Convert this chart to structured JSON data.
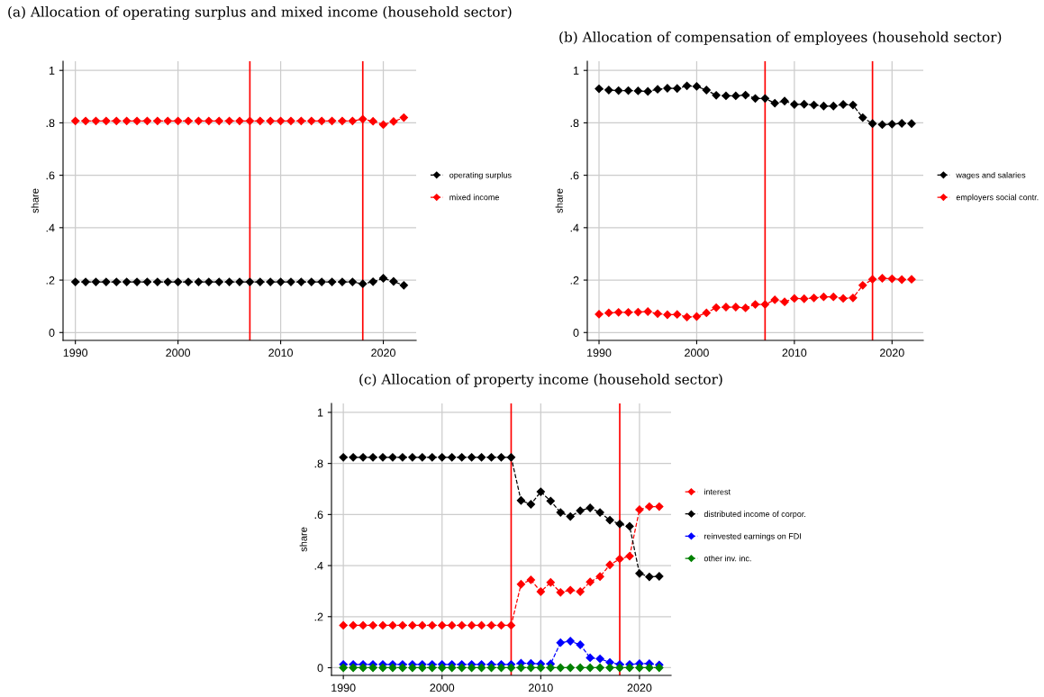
{
  "chart_data": [
    {
      "type": "line",
      "title": "(a) Allocation of operating surplus and mixed income (household sector)",
      "ylabel": "share",
      "x": [
        1990,
        1991,
        1992,
        1993,
        1994,
        1995,
        1996,
        1997,
        1998,
        1999,
        2000,
        2001,
        2002,
        2003,
        2004,
        2005,
        2006,
        2007,
        2008,
        2009,
        2010,
        2011,
        2012,
        2013,
        2014,
        2015,
        2016,
        2017,
        2018,
        2019,
        2020,
        2021,
        2022
      ],
      "series": [
        {
          "name": "operating surplus",
          "color": "#000000",
          "values": [
            0.193,
            0.193,
            0.193,
            0.193,
            0.193,
            0.193,
            0.193,
            0.193,
            0.193,
            0.193,
            0.193,
            0.193,
            0.193,
            0.193,
            0.193,
            0.193,
            0.193,
            0.193,
            0.193,
            0.193,
            0.193,
            0.193,
            0.193,
            0.193,
            0.193,
            0.193,
            0.193,
            0.193,
            0.186,
            0.194,
            0.207,
            0.195,
            0.18
          ]
        },
        {
          "name": "mixed income",
          "color": "#ff0000",
          "values": [
            0.807,
            0.807,
            0.807,
            0.807,
            0.807,
            0.807,
            0.807,
            0.807,
            0.807,
            0.807,
            0.807,
            0.807,
            0.807,
            0.807,
            0.807,
            0.807,
            0.807,
            0.807,
            0.807,
            0.807,
            0.807,
            0.807,
            0.807,
            0.807,
            0.807,
            0.807,
            0.807,
            0.807,
            0.814,
            0.806,
            0.793,
            0.805,
            0.82
          ]
        }
      ],
      "xlim": [
        1988.8,
        2023.2
      ],
      "ylim": [
        -0.03,
        1.035
      ],
      "xticks": [
        1990,
        2000,
        2010,
        2020
      ],
      "yticks": [
        {
          "value": 0,
          "label": "0"
        },
        {
          "value": 0.2,
          "label": ".2"
        },
        {
          "value": 0.4,
          "label": ".4"
        },
        {
          "value": 0.6,
          "label": ".6"
        },
        {
          "value": 0.8,
          "label": ".8"
        },
        {
          "value": 1,
          "label": "1"
        }
      ],
      "ref_lines": [
        {
          "axis": "x",
          "value": 2007,
          "color": "#ff0000"
        },
        {
          "axis": "x",
          "value": 2018,
          "color": "#ff0000"
        }
      ],
      "grid": true,
      "legend": "right",
      "marker": "diamond",
      "line_style": "dashed"
    },
    {
      "type": "line",
      "title": "(b) Allocation of compensation of employees (household sector)",
      "ylabel": "share",
      "x": [
        1990,
        1991,
        1992,
        1993,
        1994,
        1995,
        1996,
        1997,
        1998,
        1999,
        2000,
        2001,
        2002,
        2003,
        2004,
        2005,
        2006,
        2007,
        2008,
        2009,
        2010,
        2011,
        2012,
        2013,
        2014,
        2015,
        2016,
        2017,
        2018,
        2019,
        2020,
        2021,
        2022
      ],
      "series": [
        {
          "name": "wages and salaries",
          "color": "#000000",
          "values": [
            0.93,
            0.925,
            0.923,
            0.923,
            0.922,
            0.92,
            0.928,
            0.932,
            0.931,
            0.941,
            0.939,
            0.925,
            0.905,
            0.903,
            0.903,
            0.906,
            0.893,
            0.893,
            0.875,
            0.883,
            0.87,
            0.871,
            0.868,
            0.864,
            0.864,
            0.87,
            0.868,
            0.82,
            0.797,
            0.793,
            0.795,
            0.798,
            0.797
          ]
        },
        {
          "name": "employers social contr.",
          "color": "#ff0000",
          "values": [
            0.07,
            0.075,
            0.077,
            0.077,
            0.078,
            0.08,
            0.072,
            0.068,
            0.069,
            0.059,
            0.061,
            0.075,
            0.095,
            0.097,
            0.097,
            0.094,
            0.107,
            0.107,
            0.125,
            0.117,
            0.13,
            0.129,
            0.132,
            0.136,
            0.136,
            0.13,
            0.132,
            0.18,
            0.203,
            0.207,
            0.205,
            0.202,
            0.203
          ]
        }
      ],
      "xlim": [
        1988.8,
        2023.2
      ],
      "ylim": [
        -0.03,
        1.035
      ],
      "xticks": [
        1990,
        2000,
        2010,
        2020
      ],
      "yticks": [
        {
          "value": 0,
          "label": "0"
        },
        {
          "value": 0.2,
          "label": ".2"
        },
        {
          "value": 0.4,
          "label": ".4"
        },
        {
          "value": 0.6,
          "label": ".6"
        },
        {
          "value": 0.8,
          "label": ".8"
        },
        {
          "value": 1,
          "label": "1"
        }
      ],
      "ref_lines": [
        {
          "axis": "x",
          "value": 2007,
          "color": "#ff0000"
        },
        {
          "axis": "x",
          "value": 2018,
          "color": "#ff0000"
        }
      ],
      "grid": true,
      "legend": "right",
      "marker": "diamond",
      "line_style": "dashed"
    },
    {
      "type": "line",
      "title": "(c) Allocation of property income (household sector)",
      "ylabel": "share",
      "x": [
        1990,
        1991,
        1992,
        1993,
        1994,
        1995,
        1996,
        1997,
        1998,
        1999,
        2000,
        2001,
        2002,
        2003,
        2004,
        2005,
        2006,
        2007,
        2008,
        2009,
        2010,
        2011,
        2012,
        2013,
        2014,
        2015,
        2016,
        2017,
        2018,
        2019,
        2020,
        2021,
        2022
      ],
      "series": [
        {
          "name": "interest",
          "color": "#ff0000",
          "values": [
            0.166,
            0.166,
            0.166,
            0.166,
            0.166,
            0.166,
            0.166,
            0.166,
            0.166,
            0.166,
            0.166,
            0.166,
            0.166,
            0.166,
            0.166,
            0.166,
            0.166,
            0.166,
            0.327,
            0.344,
            0.298,
            0.334,
            0.295,
            0.304,
            0.298,
            0.336,
            0.357,
            0.403,
            0.426,
            0.437,
            0.619,
            0.631,
            0.631
          ]
        },
        {
          "name": "distributed income of corpor.",
          "color": "#000000",
          "values": [
            0.824,
            0.824,
            0.824,
            0.824,
            0.824,
            0.824,
            0.824,
            0.824,
            0.824,
            0.824,
            0.824,
            0.824,
            0.824,
            0.824,
            0.824,
            0.824,
            0.824,
            0.824,
            0.655,
            0.64,
            0.689,
            0.653,
            0.608,
            0.592,
            0.615,
            0.626,
            0.608,
            0.578,
            0.563,
            0.554,
            0.369,
            0.356,
            0.358
          ]
        },
        {
          "name": "reinvested earnings on FDI",
          "color": "#0000ff",
          "values": [
            0.013,
            0.013,
            0.013,
            0.013,
            0.013,
            0.013,
            0.013,
            0.013,
            0.013,
            0.013,
            0.013,
            0.013,
            0.013,
            0.013,
            0.013,
            0.013,
            0.013,
            0.013,
            0.018,
            0.017,
            0.015,
            0.015,
            0.098,
            0.104,
            0.09,
            0.039,
            0.035,
            0.021,
            0.013,
            0.013,
            0.016,
            0.016,
            0.011
          ]
        },
        {
          "name": "other inv. inc.",
          "color": "#008000",
          "values": [
            0,
            0,
            0,
            0,
            0,
            0,
            0,
            0,
            0,
            0,
            0,
            0,
            0,
            0,
            0,
            0,
            0,
            0,
            0,
            0,
            0,
            0,
            0,
            0,
            0,
            0,
            0,
            0,
            0,
            0,
            0,
            0,
            0
          ]
        }
      ],
      "xlim": [
        1988.8,
        2023.2
      ],
      "ylim": [
        -0.03,
        1.035
      ],
      "xticks": [
        1990,
        2000,
        2010,
        2020
      ],
      "yticks": [
        {
          "value": 0,
          "label": "0"
        },
        {
          "value": 0.2,
          "label": ".2"
        },
        {
          "value": 0.4,
          "label": ".4"
        },
        {
          "value": 0.6,
          "label": ".6"
        },
        {
          "value": 0.8,
          "label": ".8"
        },
        {
          "value": 1,
          "label": "1"
        }
      ],
      "ref_lines": [
        {
          "axis": "x",
          "value": 2007,
          "color": "#ff0000"
        },
        {
          "axis": "x",
          "value": 2018,
          "color": "#ff0000"
        }
      ],
      "grid": true,
      "legend": "right",
      "marker": "diamond",
      "line_style": "dashed"
    }
  ]
}
